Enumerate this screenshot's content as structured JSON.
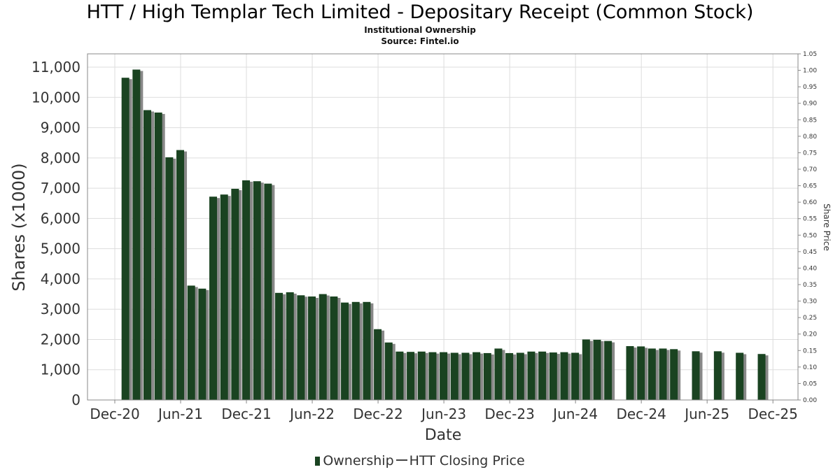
{
  "chart_data": {
    "type": "bar",
    "title": "HTT / High Templar Tech Limited - Depositary Receipt (Common Stock)",
    "subtitle": [
      "Institutional Ownership",
      "Source: Fintel.io"
    ],
    "xlabel": "Date",
    "ylabel": "Shares (x1000)",
    "y2label": "Share Price",
    "ylim": [
      0,
      11440
    ],
    "y2lim": [
      0,
      1.05
    ],
    "yticks": [
      "0",
      "1,000",
      "2,000",
      "3,000",
      "4,000",
      "5,000",
      "6,000",
      "7,000",
      "8,000",
      "9,000",
      "10,000",
      "11,000"
    ],
    "y2ticks": [
      "0.00",
      "0.05",
      "0.10",
      "0.15",
      "0.20",
      "0.25",
      "0.30",
      "0.35",
      "0.40",
      "0.45",
      "0.50",
      "0.55",
      "0.60",
      "0.65",
      "0.70",
      "0.75",
      "0.80",
      "0.85",
      "0.90",
      "0.95",
      "1.00",
      "1.05"
    ],
    "xticks": [
      "Dec-20",
      "Jun-21",
      "Dec-21",
      "Jun-22",
      "Dec-22",
      "Jun-23",
      "Dec-23",
      "Jun-24",
      "Dec-24",
      "Jun-25",
      "Dec-25"
    ],
    "legend": [
      "Ownership",
      "HTT Closing Price"
    ],
    "legend_position": "bottom",
    "grid": true,
    "series": [
      {
        "name": "Ownership",
        "color": "#1a4321",
        "x_months_since_dec20": [
          1,
          2,
          3,
          4,
          5,
          6,
          7,
          8,
          9,
          10,
          11,
          12,
          13,
          14,
          15,
          16,
          17,
          18,
          19,
          20,
          21,
          22,
          23,
          24,
          25,
          26,
          27,
          28,
          29,
          30,
          31,
          32,
          33,
          34,
          35,
          36,
          37,
          38,
          39,
          40,
          41,
          42,
          43,
          44,
          45,
          47,
          48,
          49,
          50,
          51,
          53,
          55,
          57,
          59
        ],
        "values": [
          10650,
          10920,
          9580,
          9500,
          8020,
          8260,
          3780,
          3680,
          6720,
          6790,
          6980,
          7260,
          7230,
          7150,
          3540,
          3560,
          3460,
          3420,
          3500,
          3420,
          3220,
          3240,
          3240,
          2340,
          1900,
          1600,
          1590,
          1600,
          1580,
          1580,
          1560,
          1560,
          1580,
          1550,
          1700,
          1550,
          1560,
          1600,
          1600,
          1570,
          1580,
          1560,
          2000,
          1990,
          1950,
          1780,
          1770,
          1700,
          1700,
          1680,
          1610,
          1610,
          1560,
          1520
        ]
      }
    ]
  }
}
